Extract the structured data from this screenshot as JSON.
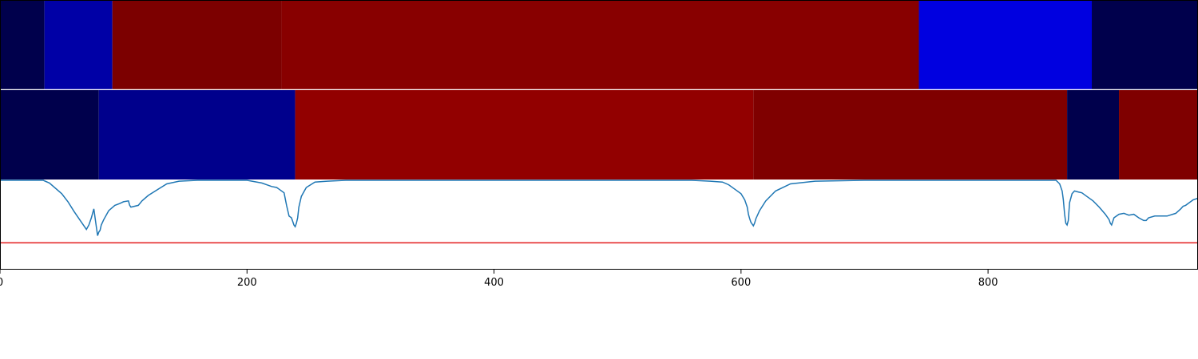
{
  "chart_data": {
    "type": "heatmap",
    "x_range": [
      0,
      970
    ],
    "x_ticks": [
      {
        "value": 0,
        "label": "0"
      },
      {
        "value": 200,
        "label": "200"
      },
      {
        "value": 400,
        "label": "400"
      },
      {
        "value": 600,
        "label": "600"
      },
      {
        "value": 800,
        "label": "800"
      }
    ],
    "segment_tracks": [
      {
        "segments": [
          {
            "start": 0,
            "end": 36,
            "color": "#00004c"
          },
          {
            "start": 36,
            "end": 91,
            "color": "#0000a6"
          },
          {
            "start": 91,
            "end": 228,
            "color": "#7c0000"
          },
          {
            "start": 228,
            "end": 744,
            "color": "#880000"
          },
          {
            "start": 744,
            "end": 884,
            "color": "#0000e0"
          },
          {
            "start": 884,
            "end": 970,
            "color": "#00004c"
          }
        ]
      },
      {
        "segments": [
          {
            "start": 0,
            "end": 80,
            "color": "#00004c"
          },
          {
            "start": 80,
            "end": 239,
            "color": "#00008c"
          },
          {
            "start": 239,
            "end": 610,
            "color": "#920000"
          },
          {
            "start": 610,
            "end": 864,
            "color": "#7f0000"
          },
          {
            "start": 864,
            "end": 906,
            "color": "#00004c"
          },
          {
            "start": 906,
            "end": 970,
            "color": "#7f0000"
          }
        ]
      }
    ],
    "line_panel": {
      "y_range": [
        0,
        1
      ],
      "threshold": 0.3,
      "threshold_color": "#e31a1c",
      "line_color": "#1f77b4",
      "series": {
        "x": [
          0,
          35,
          40,
          50,
          55,
          60,
          65,
          70,
          72,
          74,
          76,
          78,
          79,
          80,
          81,
          82,
          84,
          88,
          93,
          97,
          100,
          104,
          105,
          106,
          112,
          115,
          120,
          128,
          135,
          145,
          160,
          200,
          212,
          220,
          224,
          226,
          230,
          232,
          234,
          236,
          237,
          238,
          239,
          240,
          241,
          242,
          244,
          248,
          255,
          265,
          280,
          300,
          400,
          500,
          560,
          575,
          585,
          590,
          595,
          600,
          603,
          605,
          606,
          607,
          608,
          609,
          610,
          611,
          612,
          615,
          620,
          628,
          640,
          660,
          700,
          800,
          855,
          858,
          860,
          861,
          862,
          863,
          864,
          865,
          866,
          868,
          870,
          873,
          876,
          880,
          885,
          890,
          895,
          898,
          899,
          900,
          902,
          906,
          910,
          914,
          918,
          922,
          926,
          928,
          930,
          935,
          945,
          952,
          956,
          958,
          960,
          962,
          966,
          970
        ],
        "y": [
          1.0,
          1.0,
          0.97,
          0.85,
          0.76,
          0.65,
          0.55,
          0.45,
          0.5,
          0.58,
          0.68,
          0.48,
          0.38,
          0.42,
          0.44,
          0.5,
          0.56,
          0.66,
          0.72,
          0.74,
          0.76,
          0.77,
          0.72,
          0.7,
          0.72,
          0.77,
          0.83,
          0.9,
          0.96,
          0.99,
          1.0,
          1.0,
          0.97,
          0.93,
          0.92,
          0.9,
          0.86,
          0.72,
          0.6,
          0.58,
          0.54,
          0.5,
          0.48,
          0.52,
          0.58,
          0.7,
          0.82,
          0.92,
          0.98,
          0.99,
          1.0,
          1.0,
          1.0,
          1.0,
          1.0,
          0.99,
          0.98,
          0.95,
          0.9,
          0.85,
          0.78,
          0.7,
          0.62,
          0.57,
          0.53,
          0.51,
          0.49,
          0.52,
          0.57,
          0.66,
          0.77,
          0.88,
          0.96,
          0.99,
          1.0,
          1.0,
          1.0,
          0.96,
          0.88,
          0.78,
          0.62,
          0.52,
          0.5,
          0.55,
          0.75,
          0.85,
          0.88,
          0.87,
          0.86,
          0.82,
          0.77,
          0.7,
          0.62,
          0.56,
          0.52,
          0.5,
          0.58,
          0.62,
          0.63,
          0.61,
          0.62,
          0.58,
          0.55,
          0.55,
          0.58,
          0.6,
          0.6,
          0.63,
          0.68,
          0.71,
          0.72,
          0.74,
          0.78,
          0.8
        ]
      }
    }
  }
}
